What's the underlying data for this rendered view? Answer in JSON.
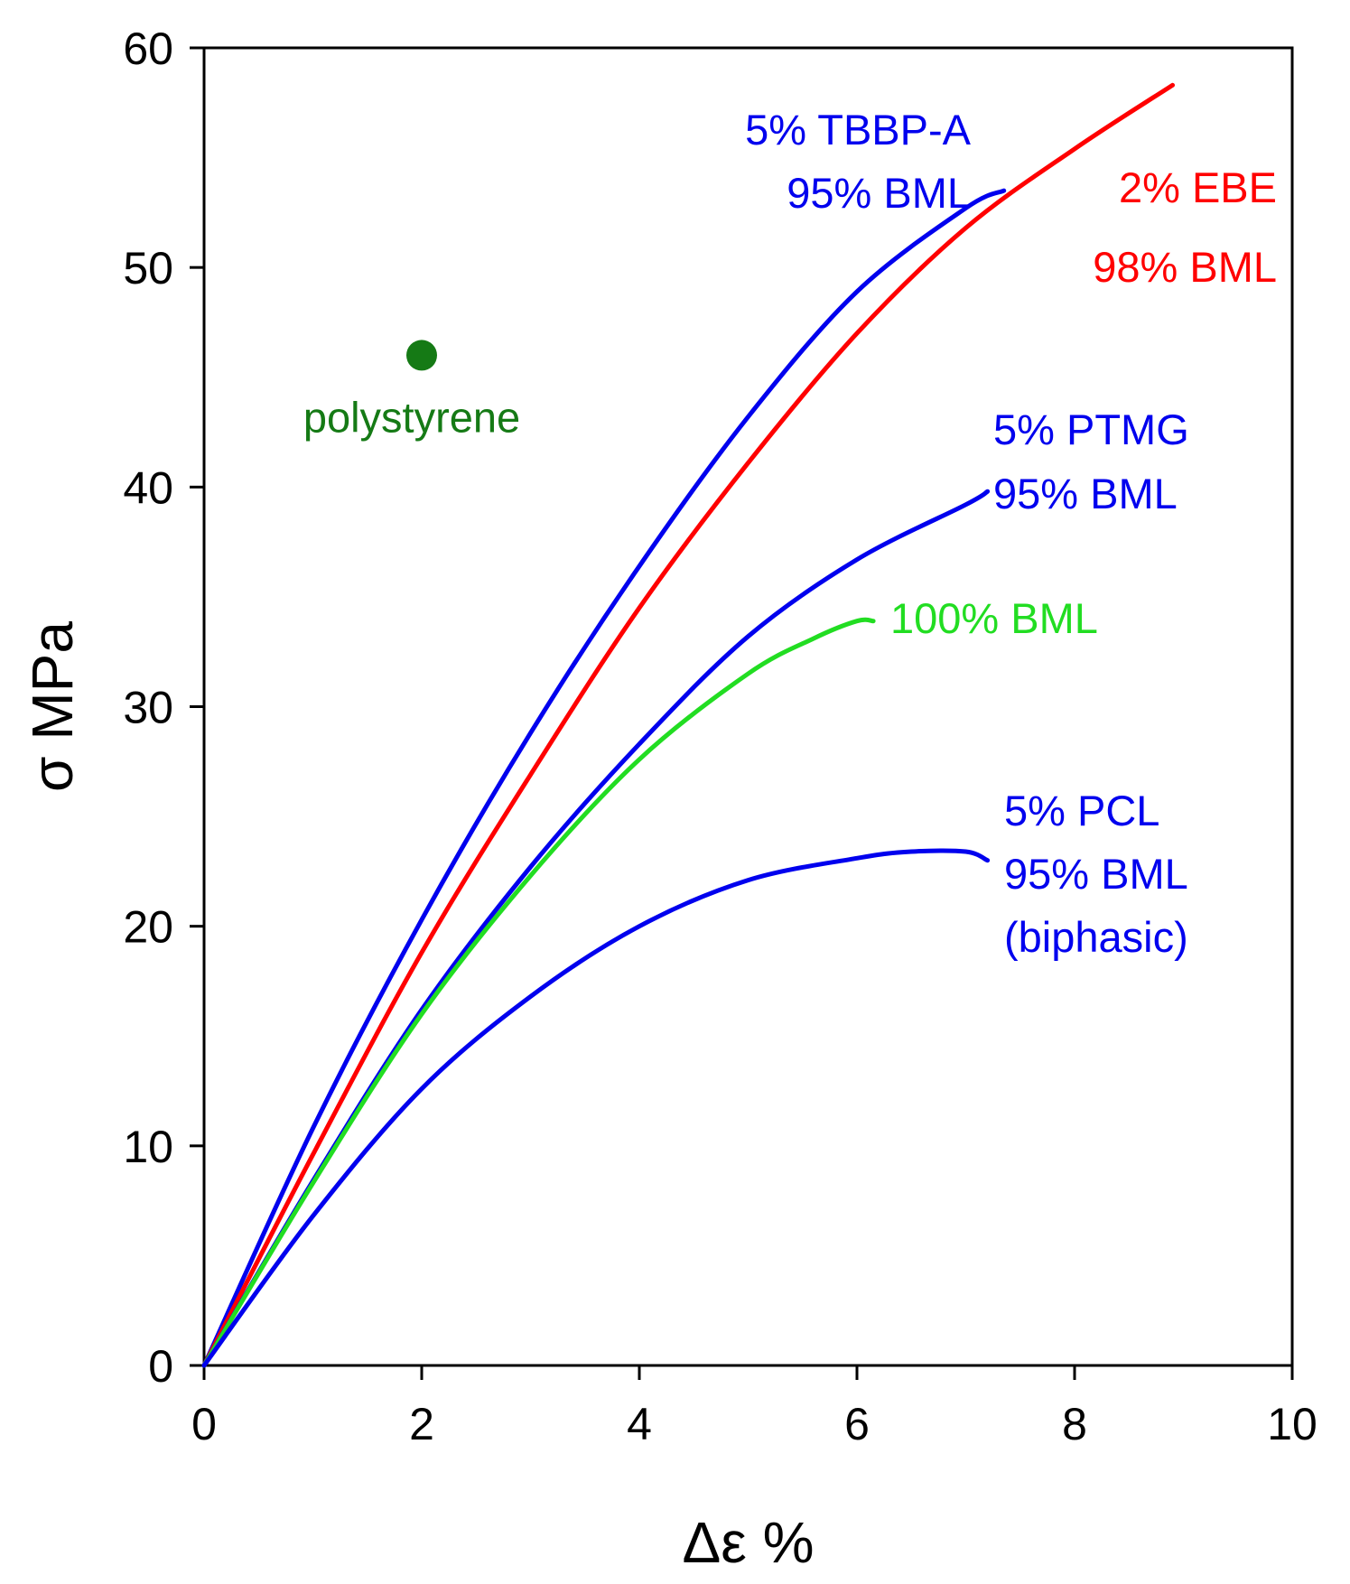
{
  "chart_data": {
    "type": "line",
    "title": "",
    "xlabel": "Δε %",
    "ylabel": "σ MPa",
    "xlim": [
      0,
      10
    ],
    "ylim": [
      0,
      60
    ],
    "xticks": [
      0,
      2,
      4,
      6,
      8,
      10
    ],
    "yticks": [
      0,
      10,
      20,
      30,
      40,
      50,
      60
    ],
    "x_tick_labels": [
      "0",
      "2",
      "4",
      "6",
      "8",
      "10"
    ],
    "y_tick_labels": [
      "0",
      "10",
      "20",
      "30",
      "40",
      "50",
      "60"
    ],
    "grid": false,
    "series": [
      {
        "id": "tbbpa",
        "name": "5% TBBP-A 95% BML",
        "label_lines": [
          "5% TBBP-A",
          "95% BML"
        ],
        "color": "#0000ee",
        "x": [
          0,
          1,
          2,
          3,
          4,
          5,
          6,
          7,
          7.35
        ],
        "y": [
          0,
          10.8,
          20.3,
          28.8,
          36.4,
          43.2,
          48.9,
          52.7,
          53.5
        ]
      },
      {
        "id": "ebe",
        "name": "2% EBE 98% BML",
        "label_lines": [
          "2% EBE",
          "98% BML"
        ],
        "color": "#ff0000",
        "x": [
          0,
          1,
          2,
          3,
          4,
          5,
          6,
          7,
          8,
          8.9
        ],
        "y": [
          0,
          9.6,
          18.8,
          26.9,
          34.5,
          41.1,
          47.0,
          51.8,
          55.4,
          58.3
        ]
      },
      {
        "id": "ptmg",
        "name": "5% PTMG 95% BML",
        "label_lines": [
          "5% PTMG",
          "95% BML"
        ],
        "color": "#0000ee",
        "x": [
          0,
          1,
          2,
          3,
          4,
          5,
          6,
          7,
          7.2
        ],
        "y": [
          0,
          8.4,
          16.2,
          22.7,
          28.3,
          33.2,
          36.7,
          39.2,
          39.8
        ]
      },
      {
        "id": "bml100",
        "name": "100% BML",
        "label_lines": [
          "100% BML"
        ],
        "color": "#22dd22",
        "x": [
          0,
          1,
          2,
          3,
          4,
          5,
          5.6,
          6.0,
          6.15
        ],
        "y": [
          0,
          8.3,
          16.0,
          22.3,
          27.6,
          31.5,
          33.1,
          33.9,
          33.9
        ]
      },
      {
        "id": "pcl",
        "name": "5% PCL 95% BML (biphasic)",
        "label_lines": [
          "5% PCL",
          "95% BML",
          "(biphasic)"
        ],
        "color": "#0000ee",
        "x": [
          0,
          1,
          2,
          3,
          4,
          5,
          6,
          6.5,
          7.0,
          7.2
        ],
        "y": [
          0,
          6.8,
          12.6,
          16.8,
          20.0,
          22.1,
          23.1,
          23.4,
          23.4,
          23.0
        ]
      }
    ],
    "points": [
      {
        "id": "polystyrene",
        "name": "polystyrene",
        "color": "#157a15",
        "x": 2.0,
        "y": 46.0
      }
    ]
  }
}
